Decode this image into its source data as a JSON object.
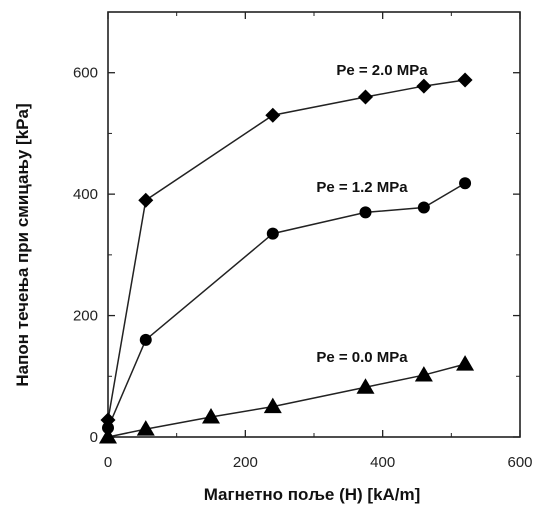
{
  "chart_data": {
    "type": "scatter",
    "xlabel": "Магнетно поље (H) [kA/m]",
    "ylabel": "Напон течења при смицању [kPa]",
    "xlim": [
      0,
      600
    ],
    "ylim": [
      0,
      700
    ],
    "x_ticks": [
      0,
      200,
      400,
      600
    ],
    "y_ticks": [
      0,
      200,
      400,
      600
    ],
    "grid": false,
    "series": [
      {
        "name": "Pe = 2.0 MPa",
        "marker": "diamond",
        "x": [
          0,
          55,
          240,
          375,
          460,
          520
        ],
        "y": [
          28,
          390,
          530,
          560,
          578,
          588
        ]
      },
      {
        "name": "Pe = 1.2 MPa",
        "marker": "circle",
        "x": [
          0,
          55,
          240,
          375,
          460,
          520
        ],
        "y": [
          15,
          160,
          335,
          370,
          378,
          418
        ]
      },
      {
        "name": "Pe = 0.0 MPa",
        "marker": "triangle",
        "x": [
          0,
          55,
          150,
          240,
          375,
          460,
          520
        ],
        "y": [
          0,
          13,
          33,
          50,
          82,
          102,
          120
        ]
      }
    ],
    "colors": {
      "marker": "#000000",
      "line": "#222222",
      "axis": "#222222"
    }
  }
}
